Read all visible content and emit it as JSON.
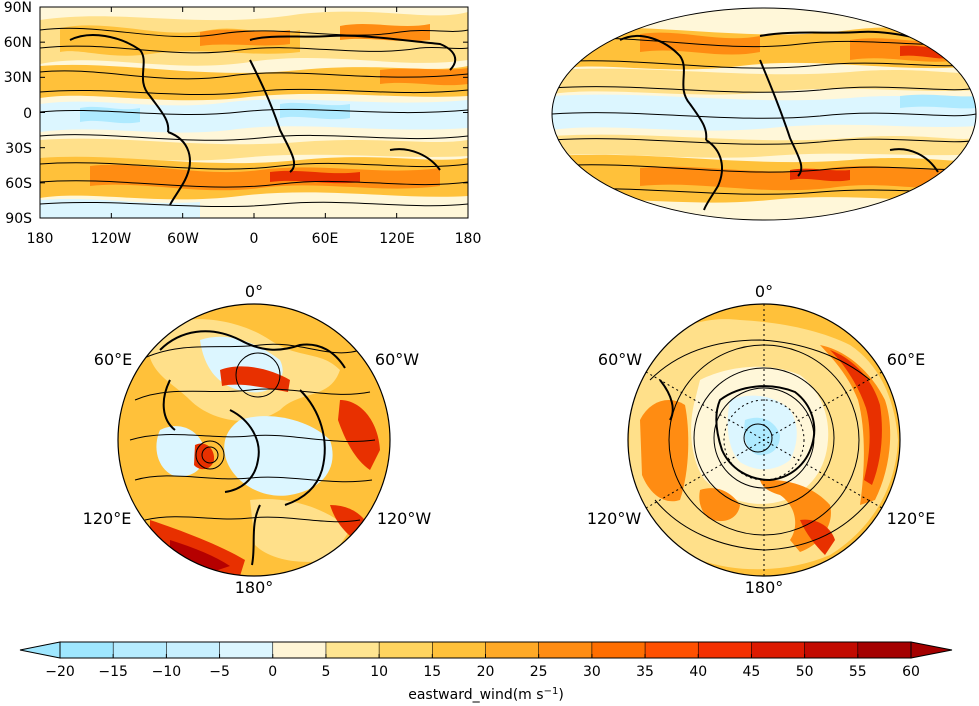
{
  "panels": {
    "cyl_yticks": [
      "90N",
      "60N",
      "30N",
      "0",
      "30S",
      "60S",
      "90S"
    ],
    "cyl_xticks": [
      "180",
      "120W",
      "60W",
      "0",
      "60E",
      "120E",
      "180"
    ],
    "north_polar": {
      "top": "0°",
      "upper_left": "60°E",
      "upper_right": "60°W",
      "lower_left": "120°E",
      "lower_right": "120°W",
      "bottom": "180°"
    },
    "south_polar": {
      "top": "0°",
      "upper_left": "60°W",
      "upper_right": "60°E",
      "lower_left": "120°W",
      "lower_right": "120°E",
      "bottom": "180°"
    }
  },
  "colorbar": {
    "ticks": [
      "−20",
      "−15",
      "−10",
      "−5",
      "0",
      "5",
      "10",
      "15",
      "20",
      "25",
      "30",
      "35",
      "40",
      "45",
      "50",
      "55",
      "60"
    ],
    "label_text": "eastward_wind(m s",
    "label_exp": "−1",
    "label_close": ")",
    "colors": [
      "#9fe7ff",
      "#b6ecff",
      "#c8f0ff",
      "#dcf6ff",
      "#eefbff",
      "#fff5d6",
      "#ffe591",
      "#ffd45f",
      "#ffc13a",
      "#ffa926",
      "#ff8c12",
      "#ff6e00",
      "#ff5000",
      "#f43000",
      "#dd1a00",
      "#c20a00",
      "#a40000"
    ],
    "under_color": "#9fe7ff",
    "over_color": "#a40000"
  },
  "fill_colors": {
    "neg_strong": "#aeeaff",
    "neg": "#dcf6ff",
    "near_zero": "#fff7d9",
    "low": "#ffe08a",
    "mid": "#ffc13a",
    "high": "#ff8c12",
    "very_high": "#e83000",
    "max": "#b50000"
  }
}
